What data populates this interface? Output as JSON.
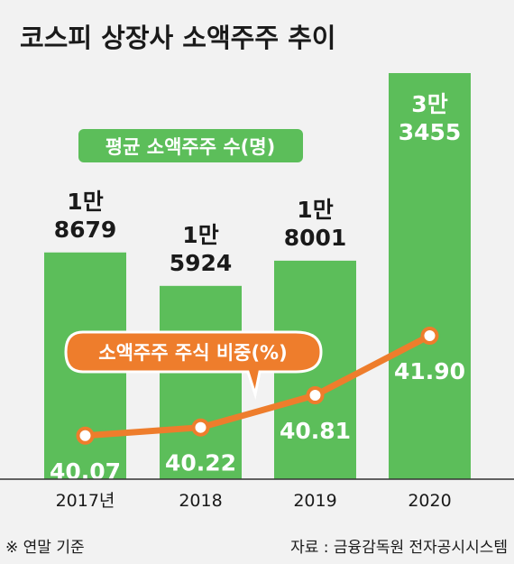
{
  "chart_data": {
    "type": "bar",
    "title": "코스피 상장사 소액주주 추이",
    "categories": [
      "2017년",
      "2018",
      "2019",
      "2020"
    ],
    "series": [
      {
        "name": "평균 소액주주 수(명)",
        "type": "bar",
        "values": [
          18679,
          15924,
          18001,
          33455
        ],
        "labels": [
          [
            "1만",
            "8679"
          ],
          [
            "1만",
            "5924"
          ],
          [
            "1만",
            "8001"
          ],
          [
            "3만",
            "3455"
          ]
        ]
      },
      {
        "name": "소액주주 주식 비중(%)",
        "type": "line",
        "values": [
          40.07,
          40.22,
          40.81,
          41.9
        ],
        "labels": [
          "40.07",
          "40.22",
          "40.81",
          "41.90"
        ]
      }
    ],
    "footnote": "※ 연말 기준",
    "source": "자료 : 금융감독원 전자공시시스템",
    "colors": {
      "background": "#f2f2f2",
      "bar": "#5cbe5a",
      "line": "#ee7d2c",
      "text": "#1a1a1a",
      "bar_text": "#ffffff"
    }
  }
}
